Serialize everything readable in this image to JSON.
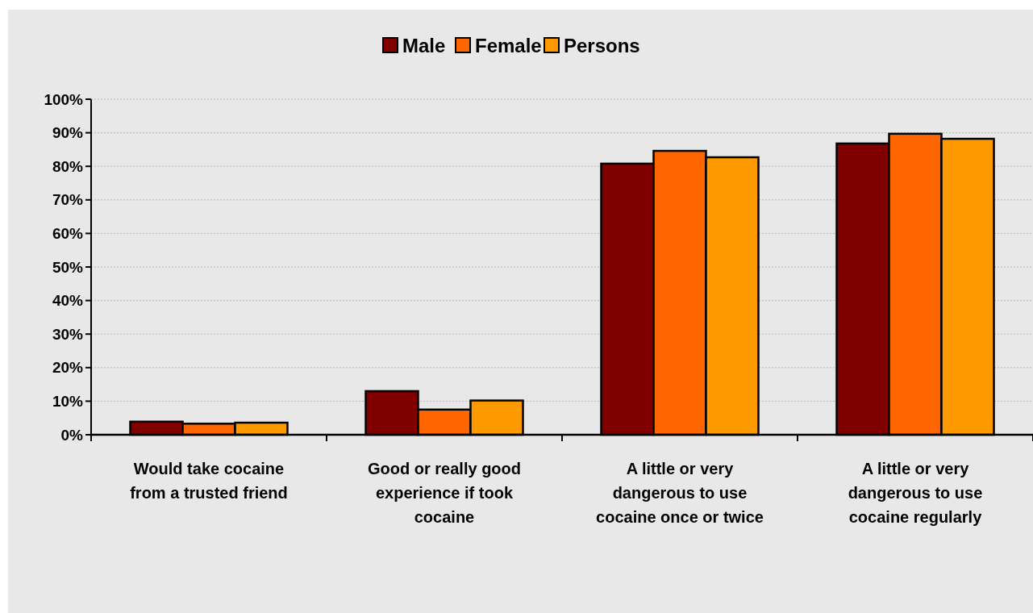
{
  "chart_data": {
    "type": "bar",
    "categories": [
      "Would take cocaine from a trusted friend",
      "Good or really good experience if took cocaine",
      "A little or very dangerous to use cocaine once or twice",
      "A little or very dangerous to use cocaine regularly"
    ],
    "series": [
      {
        "name": "Male",
        "color": "#800000",
        "values": [
          3.9,
          13,
          80.8,
          86.8
        ]
      },
      {
        "name": "Female",
        "color": "#ff6600",
        "values": [
          3.3,
          7.5,
          84.6,
          89.7
        ]
      },
      {
        "name": "Persons",
        "color": "#ff9900",
        "values": [
          3.6,
          10.2,
          82.7,
          88.2
        ]
      }
    ],
    "ylim": [
      0,
      100
    ],
    "yticks": [
      {
        "value": 0,
        "label": "0%"
      },
      {
        "value": 10,
        "label": "10%"
      },
      {
        "value": 20,
        "label": "20%"
      },
      {
        "value": 30,
        "label": "30%"
      },
      {
        "value": 40,
        "label": "40%"
      },
      {
        "value": 50,
        "label": "50%"
      },
      {
        "value": 60,
        "label": "60%"
      },
      {
        "value": 70,
        "label": "70%"
      },
      {
        "value": 80,
        "label": "80%"
      },
      {
        "value": 90,
        "label": "90%"
      },
      {
        "value": 100,
        "label": "100%"
      }
    ],
    "grid": "y",
    "legend": "top"
  }
}
